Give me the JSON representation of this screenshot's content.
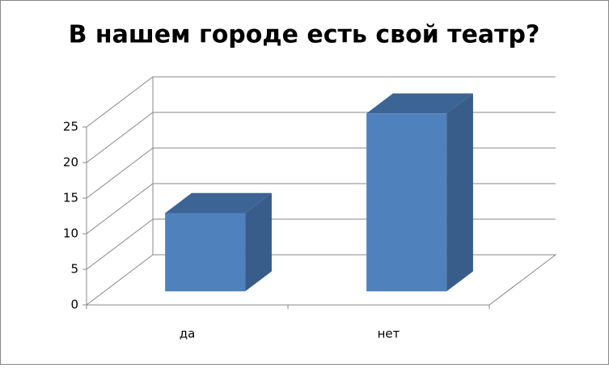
{
  "chart_data": {
    "type": "bar3d",
    "title": "В нашем городе есть свой театр?",
    "categories": [
      "да",
      "нет"
    ],
    "values": [
      11,
      25
    ],
    "color": "#4f81bd",
    "ylim": [
      0,
      25
    ],
    "yticks": [
      0,
      5,
      10,
      15,
      20,
      25
    ],
    "grid": true
  }
}
